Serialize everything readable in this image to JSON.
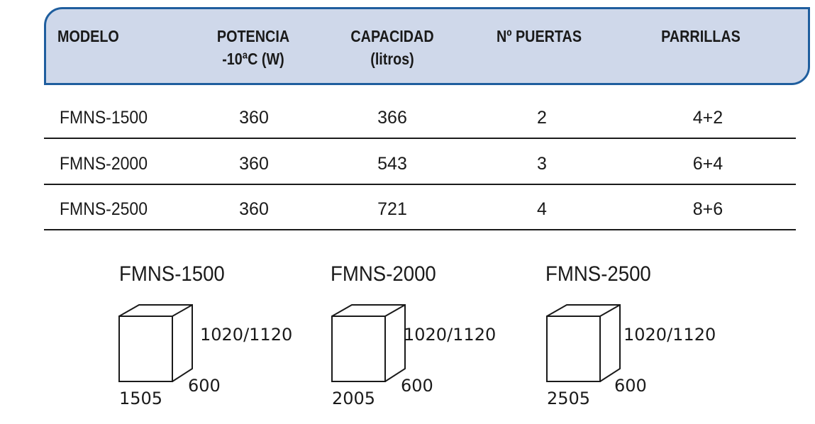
{
  "table": {
    "headers": [
      {
        "line1": "MODELO",
        "line2": ""
      },
      {
        "line1": "POTENCIA",
        "line2": "-10ªC (W)"
      },
      {
        "line1": "CAPACIDAD",
        "line2": "(litros)"
      },
      {
        "line1": "Nº PUERTAS",
        "line2": ""
      },
      {
        "line1": "PARRILLAS",
        "line2": ""
      }
    ],
    "rows": [
      {
        "model": "FMNS-1500",
        "power": "360",
        "capacity": "366",
        "doors": "2",
        "grills": "4+2"
      },
      {
        "model": "FMNS-2000",
        "power": "360",
        "capacity": "543",
        "doors": "3",
        "grills": "6+4"
      },
      {
        "model": "FMNS-2500",
        "power": "360",
        "capacity": "721",
        "doors": "4",
        "grills": "8+6"
      }
    ]
  },
  "dimensions": [
    {
      "model": "FMNS-1500",
      "height": "1020/1120",
      "depth": "600",
      "width": "1505"
    },
    {
      "model": "FMNS-2000",
      "height": "1020/1120",
      "depth": "600",
      "width": "2005"
    },
    {
      "model": "FMNS-2500",
      "height": "1020/1120",
      "depth": "600",
      "width": "2505"
    }
  ],
  "colors": {
    "header_fill": "#cfd8ea",
    "header_border": "#1f5e9e"
  }
}
